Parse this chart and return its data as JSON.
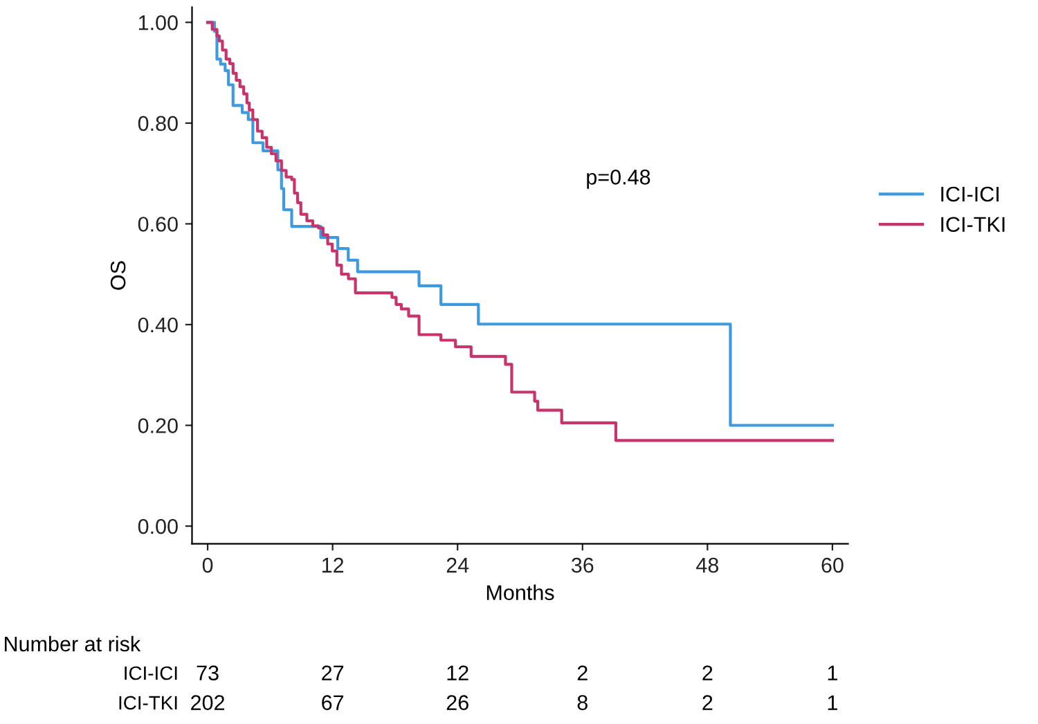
{
  "chart_data": {
    "type": "step",
    "xlabel": "Months",
    "ylabel": "OS",
    "xlim": [
      -1.5,
      61.5
    ],
    "xticks": [
      0,
      12,
      24,
      36,
      48,
      60
    ],
    "ylim": [
      -0.035,
      1.03
    ],
    "yticks": [
      {
        "value": 0,
        "label": "0.00"
      },
      {
        "value": 0.2,
        "label": "0.20"
      },
      {
        "value": 0.4,
        "label": "0.40"
      },
      {
        "value": 0.6,
        "label": "0.60"
      },
      {
        "value": 0.8,
        "label": "0.80"
      },
      {
        "value": 1,
        "label": "1.00"
      }
    ],
    "grid": false,
    "legend": "right",
    "line_style": "solid",
    "marker": "none",
    "series": [
      {
        "name": "ICI-ICI",
        "color": "#3d9ae0",
        "x": [
          0,
          0.66,
          0.89,
          1.24,
          1.68,
          2.0,
          2.44,
          3.32,
          3.9,
          4.34,
          5.32,
          6.74,
          7.09,
          7.31,
          8.07,
          10.86,
          12.5,
          13.5,
          14.4,
          20.3,
          22.4,
          26.0,
          50.2,
          60
        ],
        "values": [
          1.0,
          0.982,
          0.927,
          0.917,
          0.904,
          0.876,
          0.835,
          0.821,
          0.807,
          0.761,
          0.745,
          0.707,
          0.67,
          0.628,
          0.595,
          0.573,
          0.551,
          0.528,
          0.505,
          0.477,
          0.44,
          0.401,
          0.2,
          0.2
        ]
      },
      {
        "name": "ICI-TKI",
        "color": "#c8336b",
        "x": [
          0,
          0.44,
          0.89,
          1.11,
          1.42,
          1.77,
          2.13,
          2.44,
          2.75,
          3.1,
          3.46,
          3.77,
          4.0,
          4.34,
          4.79,
          5.23,
          5.67,
          6.12,
          6.56,
          7.09,
          7.54,
          8.07,
          8.33,
          8.64,
          8.95,
          9.53,
          10.1,
          10.64,
          11.08,
          11.53,
          11.97,
          12.41,
          12.85,
          13.52,
          14.19,
          17.7,
          18.1,
          18.6,
          19.3,
          20.3,
          22.4,
          23.8,
          25.3,
          28.6,
          29.2,
          31.4,
          31.7,
          34.0,
          39.2,
          60
        ],
        "values": [
          1.0,
          0.986,
          0.973,
          0.963,
          0.945,
          0.927,
          0.918,
          0.899,
          0.885,
          0.872,
          0.858,
          0.84,
          0.826,
          0.807,
          0.784,
          0.771,
          0.752,
          0.739,
          0.725,
          0.706,
          0.693,
          0.688,
          0.661,
          0.642,
          0.619,
          0.606,
          0.596,
          0.592,
          0.578,
          0.56,
          0.546,
          0.518,
          0.5,
          0.491,
          0.463,
          0.454,
          0.44,
          0.431,
          0.417,
          0.38,
          0.369,
          0.356,
          0.337,
          0.321,
          0.266,
          0.248,
          0.23,
          0.205,
          0.17,
          0.17
        ]
      }
    ],
    "annotations": [
      "p=0.48",
      "Number at risk",
      "ICI-ICI",
      "73",
      "27",
      "12",
      "2",
      "2",
      "1",
      "ICI-TKI",
      "202",
      "67",
      "26",
      "8",
      "2",
      "1"
    ]
  }
}
